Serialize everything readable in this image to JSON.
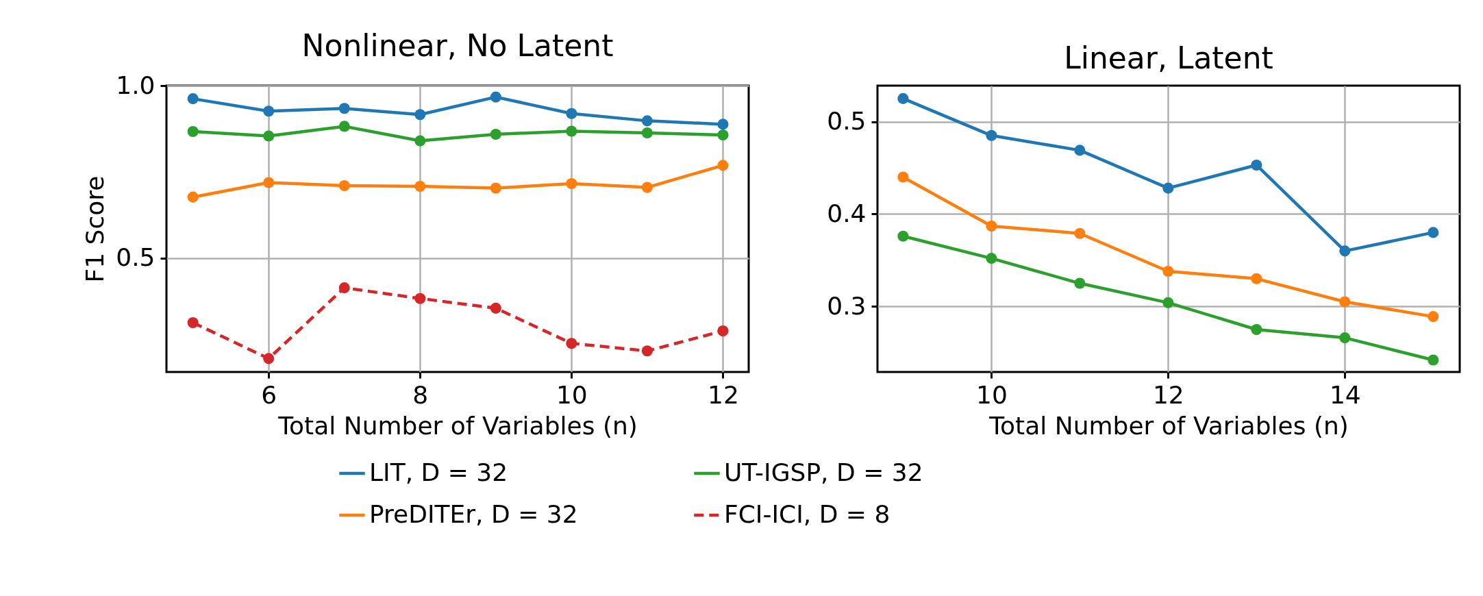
{
  "chart_data": [
    {
      "type": "line",
      "title": "Nonlinear, No Latent",
      "xlabel": "Total Number of Variables (n)",
      "ylabel": "F1 Score",
      "x": [
        5,
        6,
        7,
        8,
        9,
        10,
        11,
        12
      ],
      "xlim": [
        4.65,
        12.34
      ],
      "ylim": [
        0.17,
        1.0
      ],
      "xticks": [
        6,
        8,
        10,
        12
      ],
      "yticks": [
        0.5,
        {
          "value": 1.0,
          "label": "1.0"
        }
      ],
      "grid": true,
      "marker": "circle",
      "legend": "bottom",
      "series": [
        {
          "name": "LIT, D = 32",
          "color": "#1f77b4",
          "line_style": "solid",
          "values": [
            0.962,
            0.926,
            0.934,
            0.916,
            0.967,
            0.919,
            0.898,
            0.888
          ]
        },
        {
          "name": "UT-IGSP, D = 32",
          "color": "#2ca02c",
          "line_style": "solid",
          "values": [
            0.867,
            0.854,
            0.882,
            0.84,
            0.859,
            0.868,
            0.863,
            0.857
          ]
        },
        {
          "name": "PreDITEr, D = 32",
          "color": "#ff7f0e",
          "line_style": "solid",
          "values": [
            0.677,
            0.719,
            0.71,
            0.708,
            0.703,
            0.716,
            0.705,
            0.769
          ]
        },
        {
          "name": "FCI-ICI, D = 8",
          "color": "#d62728",
          "line_style": "dashed",
          "values": [
            0.313,
            0.209,
            0.414,
            0.383,
            0.355,
            0.253,
            0.231,
            0.289
          ]
        }
      ]
    },
    {
      "type": "line",
      "title": "Linear, Latent",
      "xlabel": "Total Number of Variables (n)",
      "x": [
        9,
        10,
        11,
        12,
        13,
        14,
        15
      ],
      "xlim": [
        8.71,
        15.3
      ],
      "ylim": [
        0.229,
        0.539
      ],
      "xticks": [
        10,
        12,
        14
      ],
      "yticks": [
        0.3,
        0.4,
        0.5
      ],
      "grid": true,
      "marker": "circle",
      "legend": "bottom",
      "series": [
        {
          "name": "LIT, D = 32",
          "color": "#1f77b4",
          "line_style": "solid",
          "values": [
            0.525,
            0.485,
            0.469,
            0.428,
            0.453,
            0.36,
            0.38
          ]
        },
        {
          "name": "UT-IGSP, D = 32",
          "color": "#2ca02c",
          "line_style": "solid",
          "values": [
            0.376,
            0.352,
            0.325,
            0.304,
            0.275,
            0.266,
            0.242
          ]
        },
        {
          "name": "PreDITEr, D = 32",
          "color": "#ff7f0e",
          "line_style": "solid",
          "values": [
            0.44,
            0.387,
            0.379,
            0.338,
            0.33,
            0.305,
            0.289
          ]
        }
      ]
    }
  ]
}
